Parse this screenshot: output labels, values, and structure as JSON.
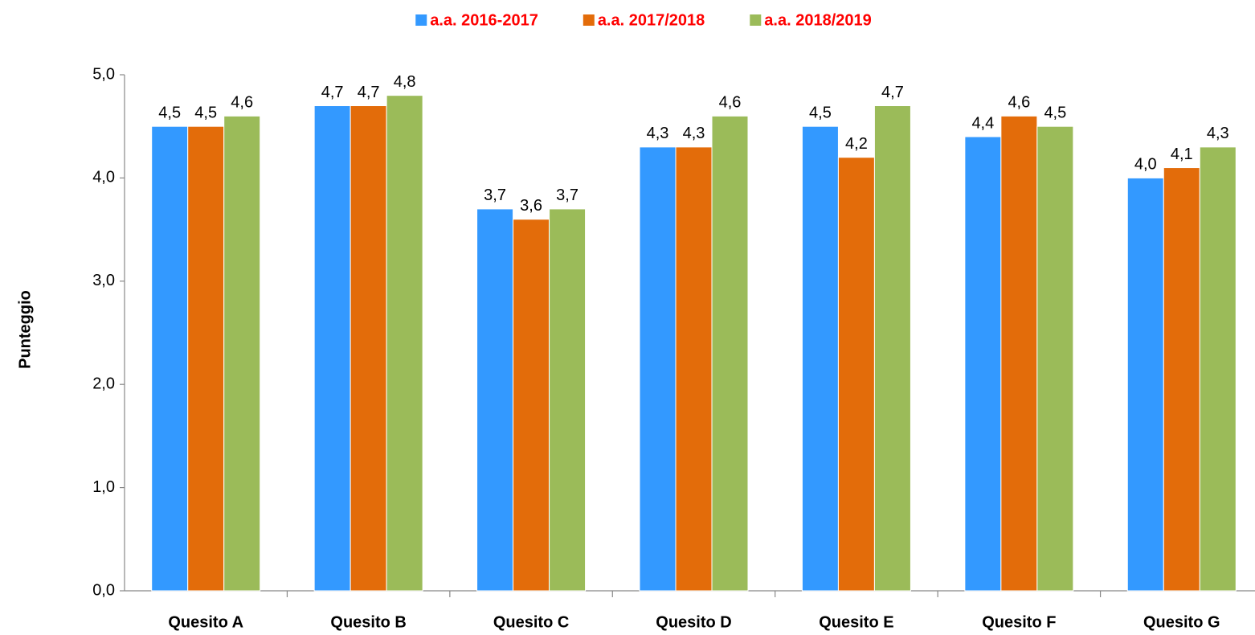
{
  "chart_data": {
    "type": "bar",
    "y_label": "Punteggio",
    "categories": [
      "Quesito A",
      "Quesito B",
      "Quesito C",
      "Quesito D",
      "Quesito E",
      "Quesito F",
      "Quesito G"
    ],
    "series": [
      {
        "name": "a.a. 2016-2017",
        "color": "#3399ff",
        "values": [
          4.5,
          4.7,
          3.7,
          4.3,
          4.5,
          4.4,
          4.0
        ],
        "value_labels": [
          "4,5",
          "4,7",
          "3,7",
          "4,3",
          "4,5",
          "4,4",
          "4,0"
        ]
      },
      {
        "name": "a.a. 2017/2018",
        "color": "#e36c0a",
        "values": [
          4.5,
          4.7,
          3.6,
          4.3,
          4.2,
          4.6,
          4.1
        ],
        "value_labels": [
          "4,5",
          "4,7",
          "3,6",
          "4,3",
          "4,2",
          "4,6",
          "4,1"
        ]
      },
      {
        "name": "a.a. 2018/2019",
        "color": "#9bbb59",
        "values": [
          4.6,
          4.8,
          3.7,
          4.6,
          4.7,
          4.5,
          4.3
        ],
        "value_labels": [
          "4,6",
          "4,8",
          "3,7",
          "4,6",
          "4,7",
          "4,5",
          "4,3"
        ]
      }
    ],
    "ylim": [
      0,
      5
    ],
    "yticks": [
      {
        "value": 0,
        "label": "0,0"
      },
      {
        "value": 1,
        "label": "1,0"
      },
      {
        "value": 2,
        "label": "2,0"
      },
      {
        "value": 3,
        "label": "3,0"
      },
      {
        "value": 4,
        "label": "4,0"
      },
      {
        "value": 5,
        "label": "5,0"
      }
    ],
    "grid": false,
    "legend_position": "top",
    "legend_text_color": "#ff0000"
  }
}
